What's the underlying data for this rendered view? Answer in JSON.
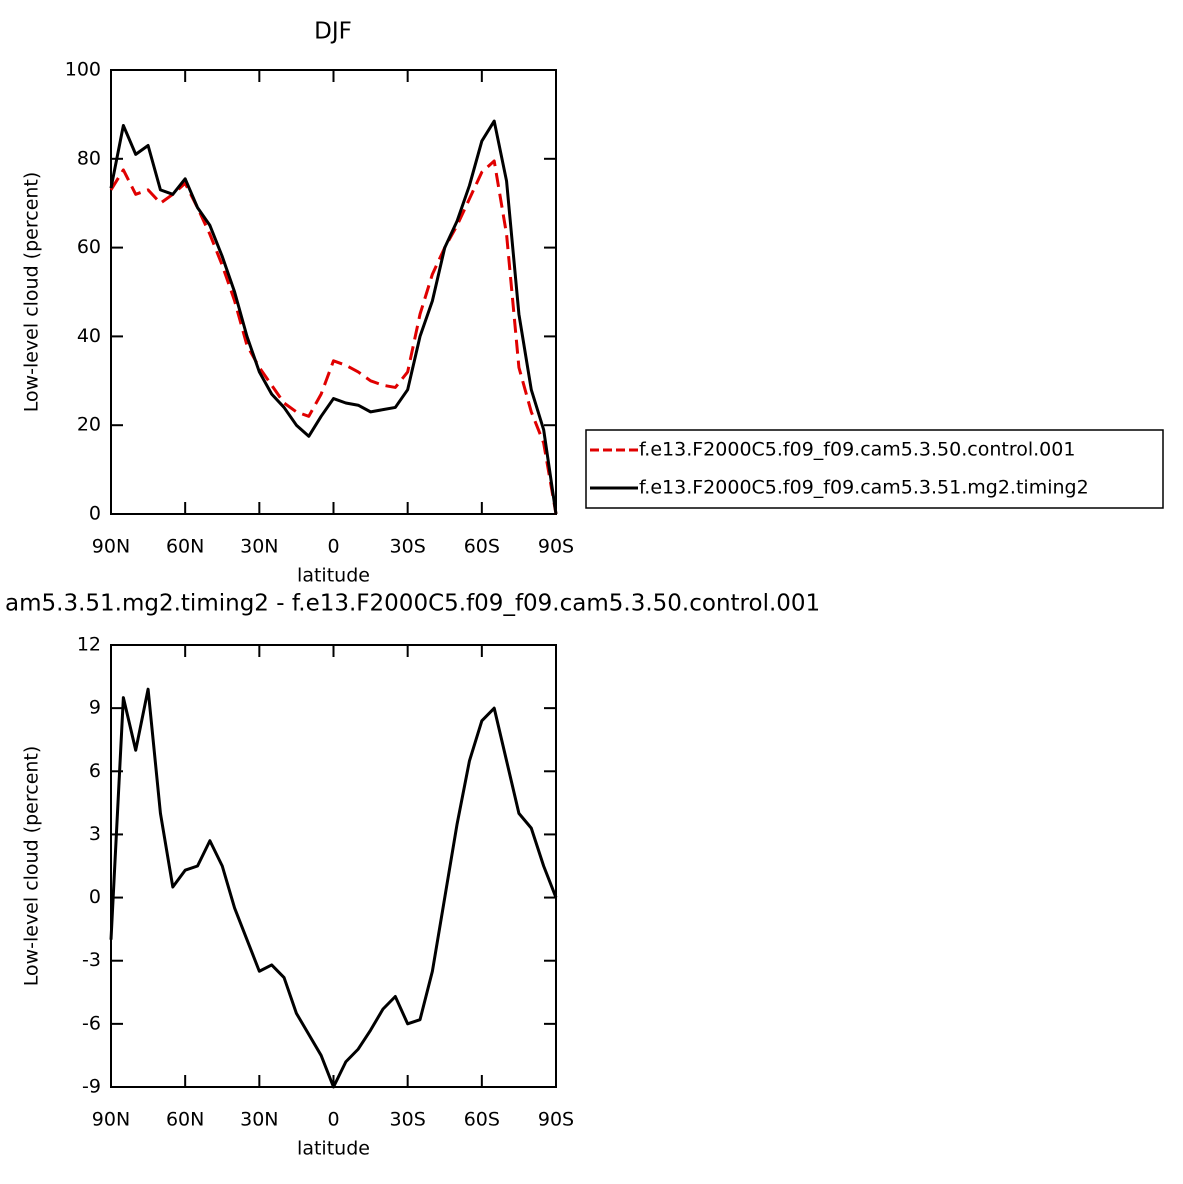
{
  "chart_data": [
    {
      "type": "line",
      "title": "DJF",
      "ylabel": "Low-level cloud (percent)",
      "xlabel": "latitude",
      "x": [
        90,
        85,
        80,
        75,
        70,
        65,
        60,
        55,
        50,
        45,
        40,
        35,
        30,
        25,
        20,
        15,
        10,
        5,
        0,
        -5,
        -10,
        -15,
        -20,
        -25,
        -30,
        -35,
        -40,
        -45,
        -50,
        -55,
        -60,
        -65,
        -70,
        -75,
        -80,
        -85,
        -90
      ],
      "xlim": [
        90,
        -90
      ],
      "xticks": [
        {
          "value": 90,
          "label": "90N"
        },
        {
          "value": 60,
          "label": "60N"
        },
        {
          "value": 30,
          "label": "30N"
        },
        0,
        {
          "value": -30,
          "label": "30S"
        },
        {
          "value": -60,
          "label": "60S"
        },
        {
          "value": -90,
          "label": "90S"
        }
      ],
      "ylim": [
        0,
        100
      ],
      "yticks": [
        0,
        20,
        40,
        60,
        80,
        100
      ],
      "legend": "right",
      "series": [
        {
          "name": "f.e13.F2000C5.f09_f09.cam5.3.50.control.001",
          "color": "#e00000",
          "dash": true,
          "values": [
            73,
            77.5,
            72,
            73,
            70,
            72,
            74.5,
            69,
            63,
            56,
            48,
            38,
            33,
            29,
            25,
            23,
            22,
            27,
            34.5,
            33.5,
            32,
            30,
            29,
            28.5,
            32,
            45,
            54,
            60,
            65,
            71,
            77,
            79.5,
            63,
            33,
            23,
            16,
            0
          ]
        },
        {
          "name": "f.e13.F2000C5.f09_f09.cam5.3.51.mg2.timing2",
          "color": "#000000",
          "dash": false,
          "values": [
            73.4,
            87.5,
            81,
            83,
            73,
            72,
            75.5,
            69,
            65,
            58,
            50,
            40,
            32,
            27,
            24,
            20,
            17.5,
            22,
            26,
            25,
            24.5,
            23,
            23.5,
            24,
            28,
            40,
            48,
            60,
            66,
            74,
            84,
            88.5,
            75,
            45,
            28,
            19,
            0
          ]
        }
      ]
    },
    {
      "type": "line",
      "title": "am5.3.51.mg2.timing2 - f.e13.F2000C5.f09_f09.cam5.3.50.control.001",
      "ylabel": "Low-level cloud (percent)",
      "xlabel": "latitude",
      "x": [
        90,
        85,
        80,
        75,
        70,
        65,
        60,
        55,
        50,
        45,
        40,
        35,
        30,
        25,
        20,
        15,
        10,
        5,
        0,
        -5,
        -10,
        -15,
        -20,
        -25,
        -30,
        -35,
        -40,
        -45,
        -50,
        -55,
        -60,
        -65,
        -70,
        -75,
        -80,
        -85,
        -90
      ],
      "xlim": [
        90,
        -90
      ],
      "xticks": [
        {
          "value": 90,
          "label": "90N"
        },
        {
          "value": 60,
          "label": "60N"
        },
        {
          "value": 30,
          "label": "30N"
        },
        0,
        {
          "value": -30,
          "label": "30S"
        },
        {
          "value": -60,
          "label": "60S"
        },
        {
          "value": -90,
          "label": "90S"
        }
      ],
      "ylim": [
        -9,
        12
      ],
      "yticks": [
        -9,
        -6,
        -3,
        0,
        3,
        6,
        9,
        12
      ],
      "series": [
        {
          "color": "#000000",
          "dash": false,
          "values": [
            -2,
            9.5,
            7,
            9.9,
            4,
            0.5,
            1.3,
            1.5,
            2.7,
            1.5,
            -0.5,
            -2,
            -3.5,
            -3.2,
            -3.8,
            -5.5,
            -6.5,
            -7.5,
            -9,
            -7.8,
            -7.2,
            -6.3,
            -5.3,
            -4.7,
            -6,
            -5.8,
            -3.5,
            0,
            3.5,
            6.5,
            8.4,
            9,
            6.5,
            4,
            3.3,
            1.5,
            0
          ]
        }
      ]
    }
  ]
}
